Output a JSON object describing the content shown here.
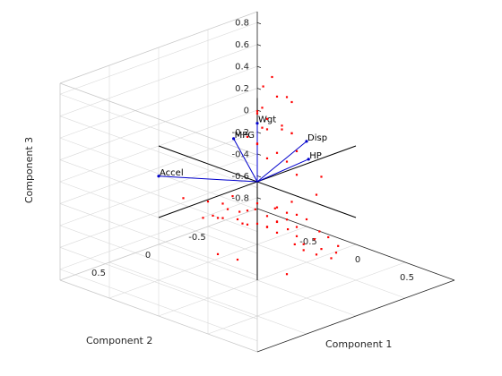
{
  "chart_data": {
    "type": "scatter",
    "subtype": "3d-biplot",
    "title": "",
    "xlabel": "Component 1",
    "ylabel": "Component 2",
    "zlabel": "Component 3",
    "xlim": [
      -1,
      1
    ],
    "ylim": [
      -1,
      1
    ],
    "zlim": [
      -0.9,
      0.9
    ],
    "x_ticks": [
      -0.5,
      0,
      0.5
    ],
    "x_tick_labels": [
      "-0.5",
      "0",
      "0.5"
    ],
    "y_ticks": [
      -0.5,
      0,
      0.5
    ],
    "y_tick_labels": [
      "-0.5",
      "0",
      "0.5"
    ],
    "z_ticks": [
      -0.8,
      -0.6,
      -0.4,
      -0.2,
      0,
      0.2,
      0.4,
      0.6,
      0.8
    ],
    "z_tick_labels": [
      "-0.8",
      "-0.6",
      "-0.4",
      "-0.2",
      "0",
      "0.2",
      "0.4",
      "0.6",
      "0.8"
    ],
    "grid": true,
    "colors": {
      "vectors": "#0000cc",
      "points": "#ff0000",
      "axes_lines": "#000000",
      "grid": "#d9d9d9"
    },
    "vectors": [
      {
        "label": "Accel",
        "x": -0.15,
        "y": 0.85,
        "z": 0.28
      },
      {
        "label": "MPG",
        "x": -0.08,
        "y": 0.16,
        "z": 0.42
      },
      {
        "label": "Wgt",
        "x": 0.1,
        "y": 0.1,
        "z": 0.6
      },
      {
        "label": "Disp",
        "x": 0.45,
        "y": -0.05,
        "z": 0.5
      },
      {
        "label": "HP",
        "x": 0.48,
        "y": -0.04,
        "z": 0.35
      }
    ],
    "scores": [
      {
        "x": -0.1,
        "y": 0.65,
        "z": 0.03
      },
      {
        "x": 0.0,
        "y": 0.55,
        "z": -0.15
      },
      {
        "x": 0.05,
        "y": 0.5,
        "z": -0.13
      },
      {
        "x": -0.05,
        "y": 0.45,
        "z": -0.05
      },
      {
        "x": 0.1,
        "y": 0.45,
        "z": -0.02
      },
      {
        "x": 0.0,
        "y": 0.4,
        "z": -0.2
      },
      {
        "x": 0.15,
        "y": 0.35,
        "z": -0.18
      },
      {
        "x": 0.05,
        "y": 0.35,
        "z": -0.12
      },
      {
        "x": -0.05,
        "y": 0.3,
        "z": -0.25
      },
      {
        "x": 0.2,
        "y": 0.3,
        "z": -0.1
      },
      {
        "x": 0.1,
        "y": 0.28,
        "z": -0.15
      },
      {
        "x": 0.0,
        "y": 0.25,
        "z": -0.05
      },
      {
        "x": 0.25,
        "y": 0.25,
        "z": -0.22
      },
      {
        "x": 0.12,
        "y": 0.22,
        "z": -0.28
      },
      {
        "x": 0.3,
        "y": 0.2,
        "z": -0.15
      },
      {
        "x": 0.05,
        "y": 0.2,
        "z": -0.3
      },
      {
        "x": 0.18,
        "y": 0.18,
        "z": -0.08
      },
      {
        "x": 0.35,
        "y": 0.15,
        "z": -0.2
      },
      {
        "x": 0.22,
        "y": 0.12,
        "z": -0.3
      },
      {
        "x": 0.1,
        "y": 0.12,
        "z": -0.18
      },
      {
        "x": 0.4,
        "y": 0.1,
        "z": -0.12
      },
      {
        "x": 0.28,
        "y": 0.08,
        "z": -0.25
      },
      {
        "x": 0.15,
        "y": 0.05,
        "z": -0.35
      },
      {
        "x": 0.45,
        "y": 0.05,
        "z": -0.25
      },
      {
        "x": 0.33,
        "y": 0.02,
        "z": -0.32
      },
      {
        "x": 0.2,
        "y": 0.0,
        "z": -0.4
      },
      {
        "x": 0.5,
        "y": 0.0,
        "z": -0.18
      },
      {
        "x": 0.38,
        "y": -0.02,
        "z": -0.38
      },
      {
        "x": 0.25,
        "y": -0.05,
        "z": -0.28
      },
      {
        "x": 0.42,
        "y": -0.05,
        "z": -0.45
      },
      {
        "x": 0.3,
        "y": -0.08,
        "z": -0.5
      },
      {
        "x": 0.55,
        "y": -0.08,
        "z": -0.3
      },
      {
        "x": 0.48,
        "y": -0.1,
        "z": -0.4
      },
      {
        "x": 0.35,
        "y": -0.12,
        "z": -0.55
      },
      {
        "x": 0.6,
        "y": -0.12,
        "z": -0.35
      },
      {
        "x": 0.5,
        "y": -0.15,
        "z": -0.5
      },
      {
        "x": 0.4,
        "y": -0.2,
        "z": -0.6
      },
      {
        "x": 0.62,
        "y": -0.2,
        "z": -0.45
      },
      {
        "x": 0.55,
        "y": -0.25,
        "z": -0.55
      },
      {
        "x": 0.45,
        "y": -0.3,
        "z": -0.65
      },
      {
        "x": 0.15,
        "y": -0.2,
        "z": -0.2
      },
      {
        "x": 0.08,
        "y": -0.1,
        "z": -0.25
      },
      {
        "x": 0.6,
        "y": 0.3,
        "z": -0.55
      },
      {
        "x": -0.2,
        "y": -0.3,
        "z": 0.05
      },
      {
        "x": -0.15,
        "y": -0.35,
        "z": 0.1
      },
      {
        "x": -0.25,
        "y": -0.25,
        "z": 0.18
      },
      {
        "x": -0.1,
        "y": -0.4,
        "z": 0.02
      },
      {
        "x": -0.3,
        "y": -0.4,
        "z": 0.25
      },
      {
        "x": -0.2,
        "y": -0.45,
        "z": 0.3
      },
      {
        "x": -0.35,
        "y": -0.35,
        "z": 0.12
      },
      {
        "x": -0.4,
        "y": -0.5,
        "z": 0.28
      },
      {
        "x": -0.3,
        "y": -0.55,
        "z": 0.2
      },
      {
        "x": -0.45,
        "y": -0.45,
        "z": 0.35
      },
      {
        "x": -0.5,
        "y": -0.55,
        "z": 0.15
      },
      {
        "x": -0.55,
        "y": -0.6,
        "z": 0.3
      },
      {
        "x": -0.6,
        "y": -0.5,
        "z": 0.05
      },
      {
        "x": -0.25,
        "y": -0.6,
        "z": 0.45
      },
      {
        "x": -0.15,
        "y": -0.55,
        "z": 0.05
      },
      {
        "x": -0.35,
        "y": -0.7,
        "z": 0.1
      },
      {
        "x": -0.6,
        "y": -0.8,
        "z": 0.32
      },
      {
        "x": -0.7,
        "y": -0.85,
        "z": 0.45
      },
      {
        "x": -0.72,
        "y": -0.78,
        "z": 0.38
      },
      {
        "x": -0.65,
        "y": -0.95,
        "z": 0.25
      },
      {
        "x": -0.8,
        "y": -0.8,
        "z": 0.1
      },
      {
        "x": -0.5,
        "y": -0.85,
        "z": 0.0
      },
      {
        "x": 0.1,
        "y": -0.5,
        "z": -0.25
      },
      {
        "x": -0.05,
        "y": -0.45,
        "z": -0.1
      },
      {
        "x": 0.0,
        "y": -0.2,
        "z": -0.3
      },
      {
        "x": 0.05,
        "y": -0.35,
        "z": -0.4
      },
      {
        "x": 0.3,
        "y": 0.5,
        "z": -0.45
      },
      {
        "x": 0.2,
        "y": 0.6,
        "z": -0.4
      },
      {
        "x": -0.05,
        "y": -0.7,
        "z": -0.2
      }
    ]
  }
}
